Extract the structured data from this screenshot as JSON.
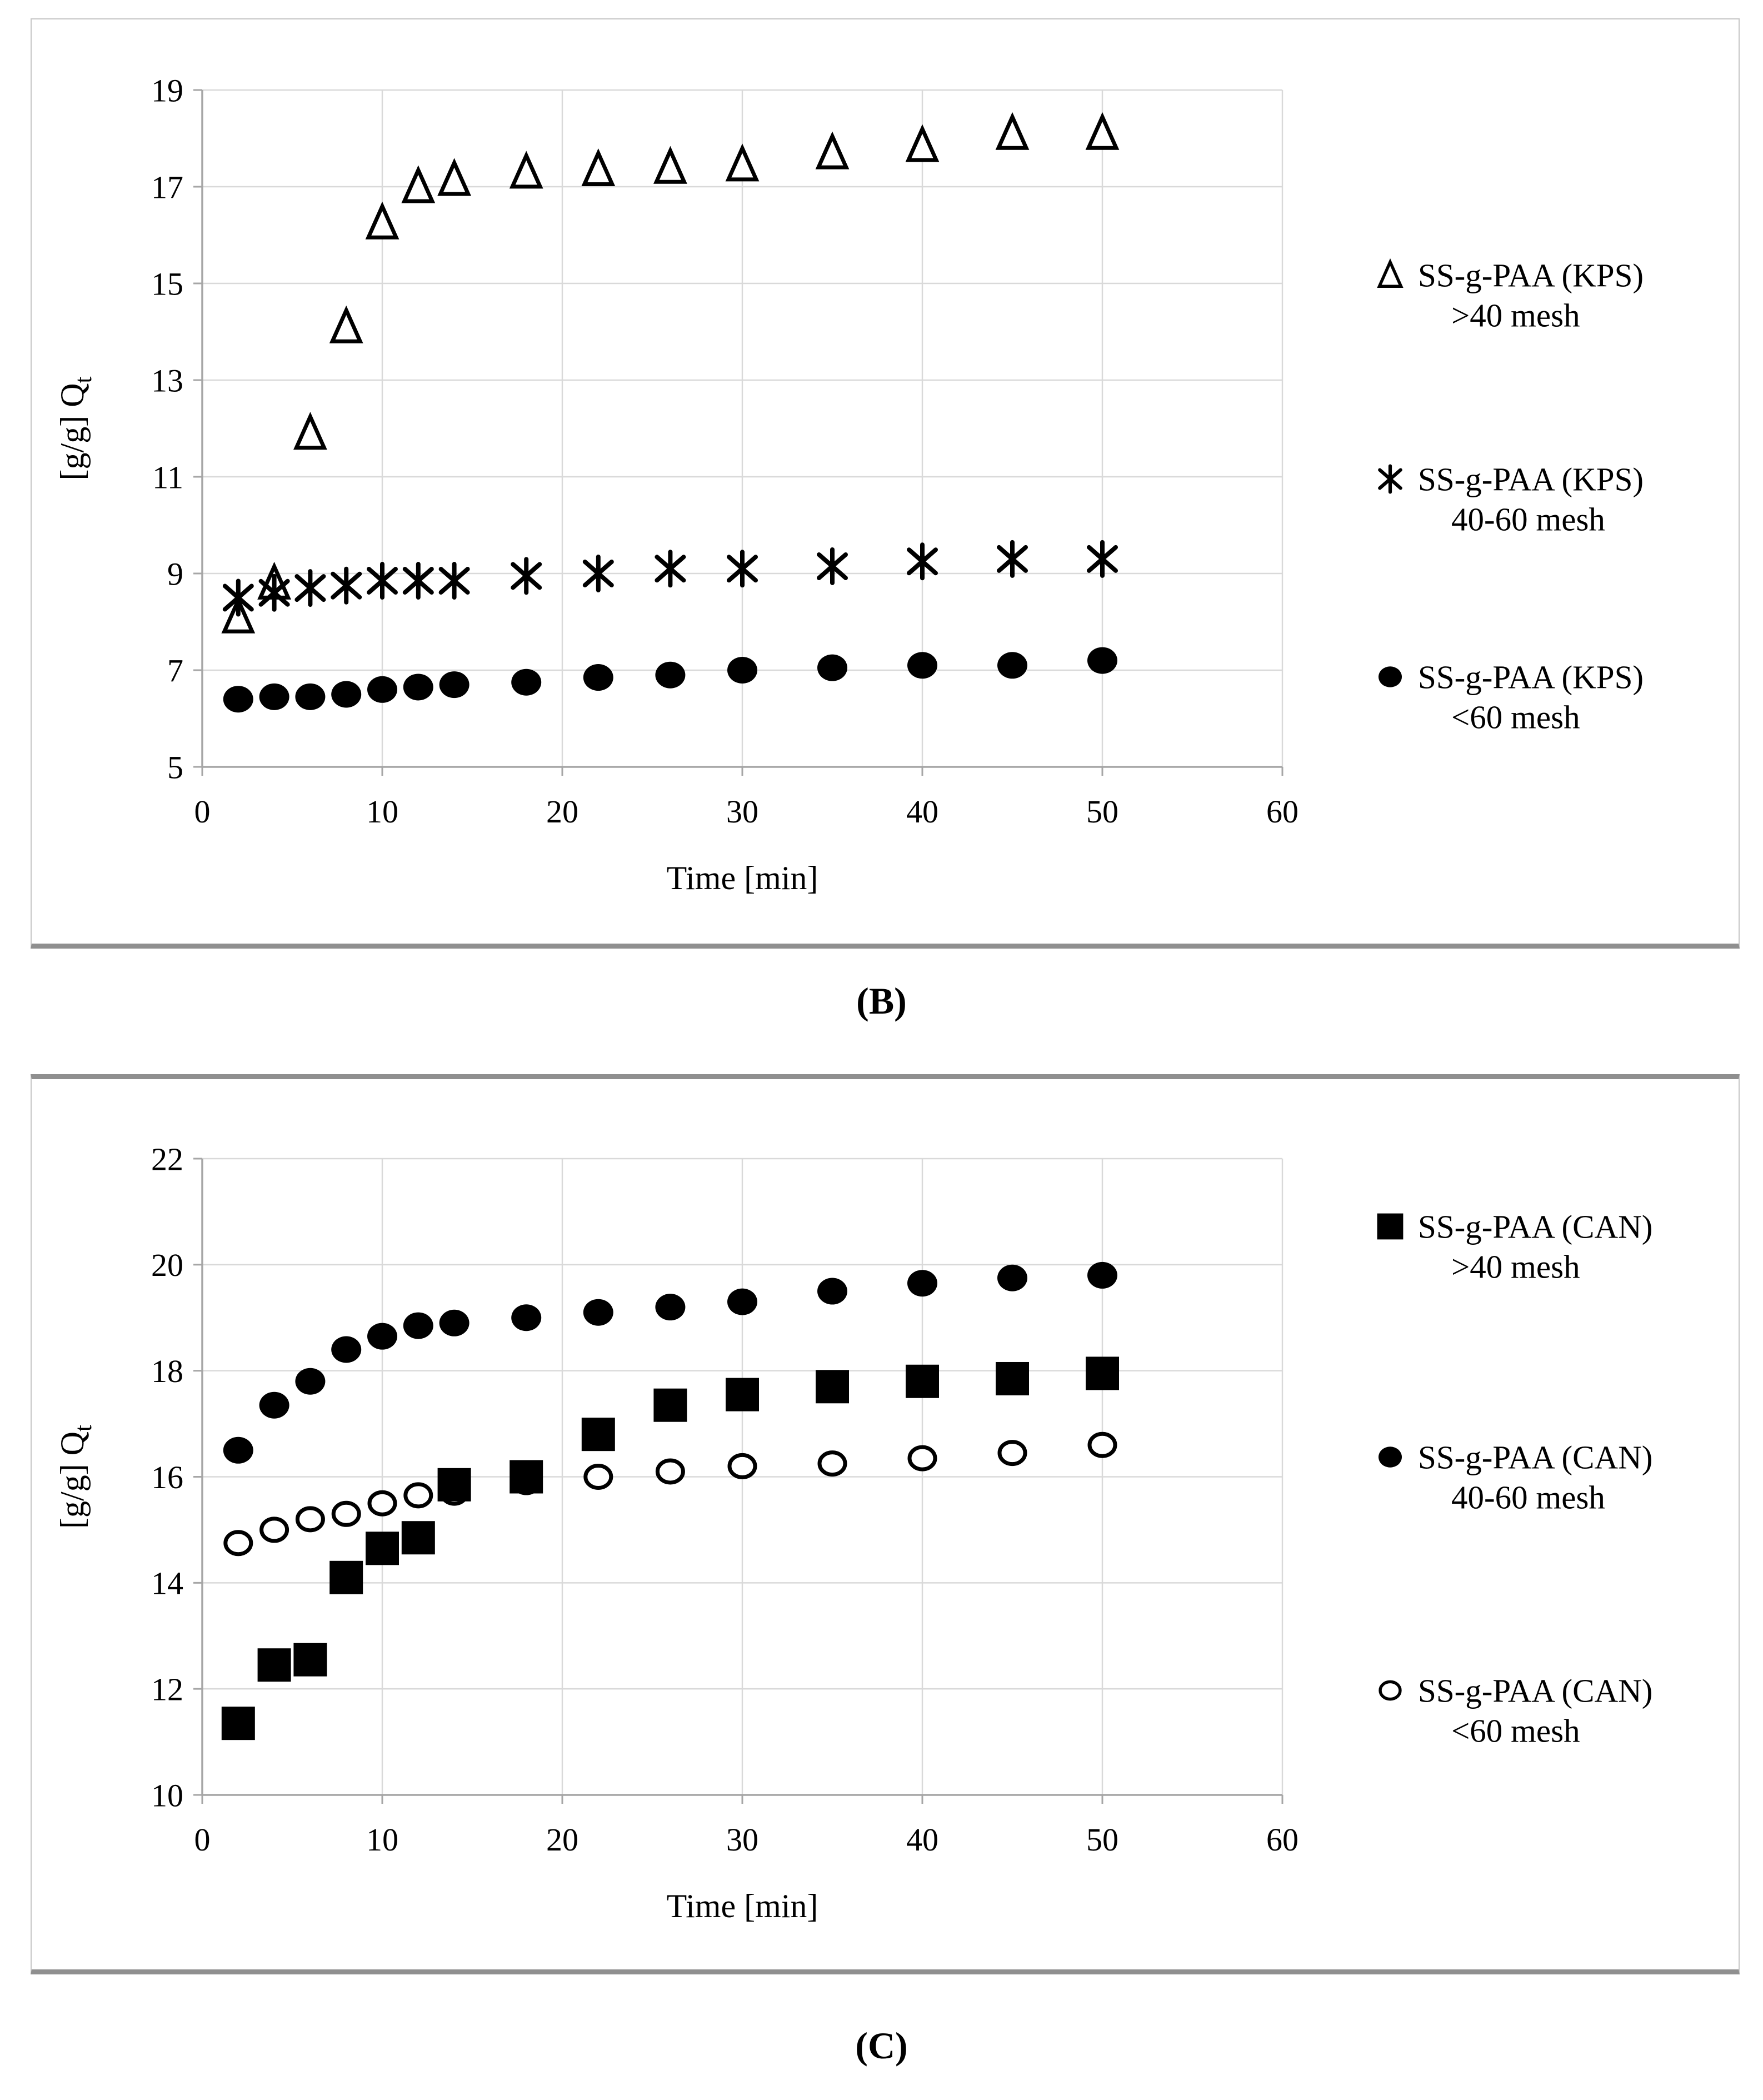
{
  "figure": {
    "background": "#ffffff",
    "text_color": "#000000",
    "gridline_color": "#d9d9d9",
    "axis_color": "#a6a6a6"
  },
  "chart_data": [
    {
      "id": "B",
      "type": "scatter",
      "caption": "(B)",
      "xlabel": "Time [min]",
      "ylabel_main": "[g/g] Q",
      "ylabel_sub": "t",
      "xlim": [
        0,
        60
      ],
      "ylim": [
        5,
        19
      ],
      "xticks": [
        0,
        10,
        20,
        30,
        40,
        50,
        60
      ],
      "yticks": [
        5,
        7,
        9,
        11,
        13,
        15,
        17,
        19
      ],
      "grid": true,
      "legend_position": "right",
      "draw_order": [
        0,
        1,
        2
      ],
      "x": [
        2,
        4,
        6,
        8,
        10,
        12,
        14,
        18,
        22,
        26,
        30,
        35,
        40,
        45,
        50
      ],
      "series": [
        {
          "name": "SS-g-PAA (KPS) >40 mesh",
          "legend_lines": [
            "SS-g-PAA (KPS)",
            ">40 mesh"
          ],
          "marker": "triangle-open",
          "values": [
            8.1,
            8.8,
            11.9,
            14.1,
            16.25,
            17.0,
            17.15,
            17.3,
            17.35,
            17.4,
            17.45,
            17.7,
            17.85,
            18.1,
            18.1
          ]
        },
        {
          "name": "SS-g-PAA (KPS) 40-60 mesh",
          "legend_lines": [
            "SS-g-PAA (KPS)",
            "40-60 mesh"
          ],
          "marker": "asterisk",
          "values": [
            8.5,
            8.6,
            8.7,
            8.75,
            8.85,
            8.85,
            8.85,
            8.95,
            9.0,
            9.1,
            9.1,
            9.15,
            9.25,
            9.3,
            9.3
          ]
        },
        {
          "name": "SS-g-PAA (KPS) <60 mesh",
          "legend_lines": [
            "SS-g-PAA (KPS)",
            "<60 mesh"
          ],
          "marker": "circle-filled",
          "values": [
            6.4,
            6.45,
            6.45,
            6.5,
            6.6,
            6.65,
            6.7,
            6.75,
            6.85,
            6.9,
            7.0,
            7.05,
            7.1,
            7.1,
            7.2
          ]
        }
      ]
    },
    {
      "id": "C",
      "type": "scatter",
      "caption": "(C)",
      "xlabel": "Time [min]",
      "ylabel_main": "[g/g] Q",
      "ylabel_sub": "t",
      "xlim": [
        0,
        60
      ],
      "ylim": [
        10,
        22
      ],
      "xticks": [
        0,
        10,
        20,
        30,
        40,
        50,
        60
      ],
      "yticks": [
        10,
        12,
        14,
        16,
        18,
        20,
        22
      ],
      "grid": true,
      "legend_position": "right",
      "draw_order": [
        2,
        0,
        1
      ],
      "x": [
        2,
        4,
        6,
        8,
        10,
        12,
        14,
        18,
        22,
        26,
        30,
        35,
        40,
        45,
        50
      ],
      "series": [
        {
          "name": "SS-g-PAA (CAN) >40 mesh",
          "legend_lines": [
            "SS-g-PAA (CAN)",
            ">40 mesh"
          ],
          "marker": "square-filled",
          "values": [
            11.35,
            12.45,
            12.55,
            14.1,
            14.65,
            14.85,
            15.85,
            16.0,
            16.8,
            17.35,
            17.55,
            17.7,
            17.8,
            17.85,
            17.95
          ]
        },
        {
          "name": "SS-g-PAA (CAN) 40-60 mesh",
          "legend_lines": [
            "SS-g-PAA (CAN)",
            "40-60 mesh"
          ],
          "marker": "circle-filled",
          "values": [
            16.5,
            17.35,
            17.8,
            18.4,
            18.65,
            18.85,
            18.9,
            19.0,
            19.1,
            19.2,
            19.3,
            19.5,
            19.65,
            19.75,
            19.8
          ]
        },
        {
          "name": "SS-g-PAA (CAN) <60 mesh",
          "legend_lines": [
            "SS-g-PAA (CAN)",
            "<60 mesh"
          ],
          "marker": "circle-open",
          "values": [
            14.75,
            15.0,
            15.2,
            15.3,
            15.5,
            15.65,
            15.7,
            15.9,
            16.0,
            16.1,
            16.2,
            16.25,
            16.35,
            16.45,
            16.6
          ]
        }
      ]
    }
  ]
}
